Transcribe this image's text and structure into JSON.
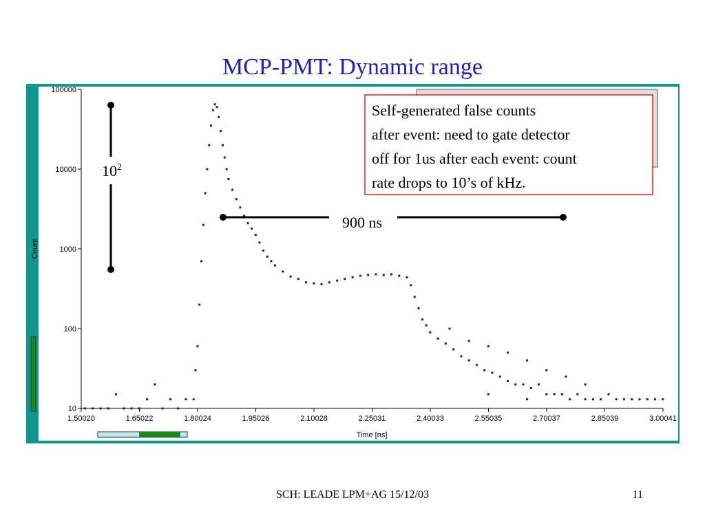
{
  "title": "MCP-PMT: Dynamic range",
  "footer": {
    "text": "SCH: LEADE  LPM+AG 15/12/03",
    "page": "11"
  },
  "annotations": {
    "range_base": "10",
    "range_exponent": "2",
    "width": "900 ns",
    "note": [
      "Self-generated false counts",
      "after event: need to gate detector",
      "off for 1us after each event: count",
      "rate drops to 10’s of kHz."
    ]
  },
  "chart_data": {
    "type": "scatter",
    "xlabel": "Time [ns]",
    "ylabel": "Count",
    "color": "#0d1a8c",
    "yscale": "log",
    "xlim": [
      1.5002,
      3.00041
    ],
    "xticks": [
      {
        "value": 1.5002,
        "label": "1.50020"
      },
      1.65022,
      1.80024,
      1.95026,
      2.10028,
      2.25031,
      2.40033,
      2.55035,
      2.70037,
      2.85039,
      3.00041
    ],
    "ylim": [
      10,
      100000
    ],
    "yticks": [
      10,
      100,
      1000,
      10000,
      100000
    ],
    "x": [
      1.51,
      1.53,
      1.55,
      1.57,
      1.59,
      1.61,
      1.63,
      1.65,
      1.67,
      1.69,
      1.71,
      1.73,
      1.75,
      1.77,
      1.79,
      1.795,
      1.8,
      1.805,
      1.81,
      1.815,
      1.82,
      1.825,
      1.83,
      1.835,
      1.84,
      1.845,
      1.85,
      1.855,
      1.86,
      1.865,
      1.87,
      1.875,
      1.88,
      1.89,
      1.9,
      1.91,
      1.92,
      1.93,
      1.94,
      1.95,
      1.96,
      1.97,
      1.98,
      1.99,
      2.0,
      2.02,
      2.04,
      2.06,
      2.08,
      2.1,
      2.12,
      2.14,
      2.16,
      2.18,
      2.2,
      2.22,
      2.24,
      2.26,
      2.28,
      2.3,
      2.32,
      2.34,
      2.35,
      2.36,
      2.37,
      2.38,
      2.39,
      2.4,
      2.42,
      2.44,
      2.46,
      2.48,
      2.5,
      2.52,
      2.54,
      2.56,
      2.58,
      2.6,
      2.62,
      2.64,
      2.66,
      2.68,
      2.7,
      2.72,
      2.74,
      2.76,
      2.78,
      2.8,
      2.82,
      2.84,
      2.86,
      2.88,
      2.9,
      2.92,
      2.94,
      2.96,
      2.98,
      3.0,
      2.45,
      2.5,
      2.55,
      2.6,
      2.65,
      2.7,
      2.75,
      2.8,
      2.55,
      2.65
    ],
    "values": [
      10,
      10,
      10,
      10,
      15,
      10,
      10,
      10,
      13,
      20,
      10,
      13,
      10,
      13,
      13,
      30,
      60,
      200,
      700,
      2000,
      5000,
      10000,
      20000,
      35000,
      55000,
      65000,
      60000,
      45000,
      30000,
      20000,
      14000,
      10000,
      7500,
      5500,
      4200,
      3300,
      2600,
      2100,
      1800,
      1500,
      1200,
      950,
      800,
      700,
      620,
      520,
      450,
      420,
      380,
      370,
      360,
      380,
      400,
      420,
      440,
      460,
      470,
      480,
      470,
      480,
      460,
      440,
      350,
      250,
      180,
      130,
      110,
      90,
      75,
      65,
      55,
      45,
      40,
      35,
      30,
      28,
      25,
      22,
      20,
      20,
      18,
      20,
      15,
      15,
      15,
      13,
      15,
      13,
      13,
      13,
      15,
      13,
      13,
      13,
      13,
      13,
      13,
      13,
      100,
      70,
      60,
      50,
      40,
      30,
      25,
      20,
      15,
      13
    ]
  }
}
